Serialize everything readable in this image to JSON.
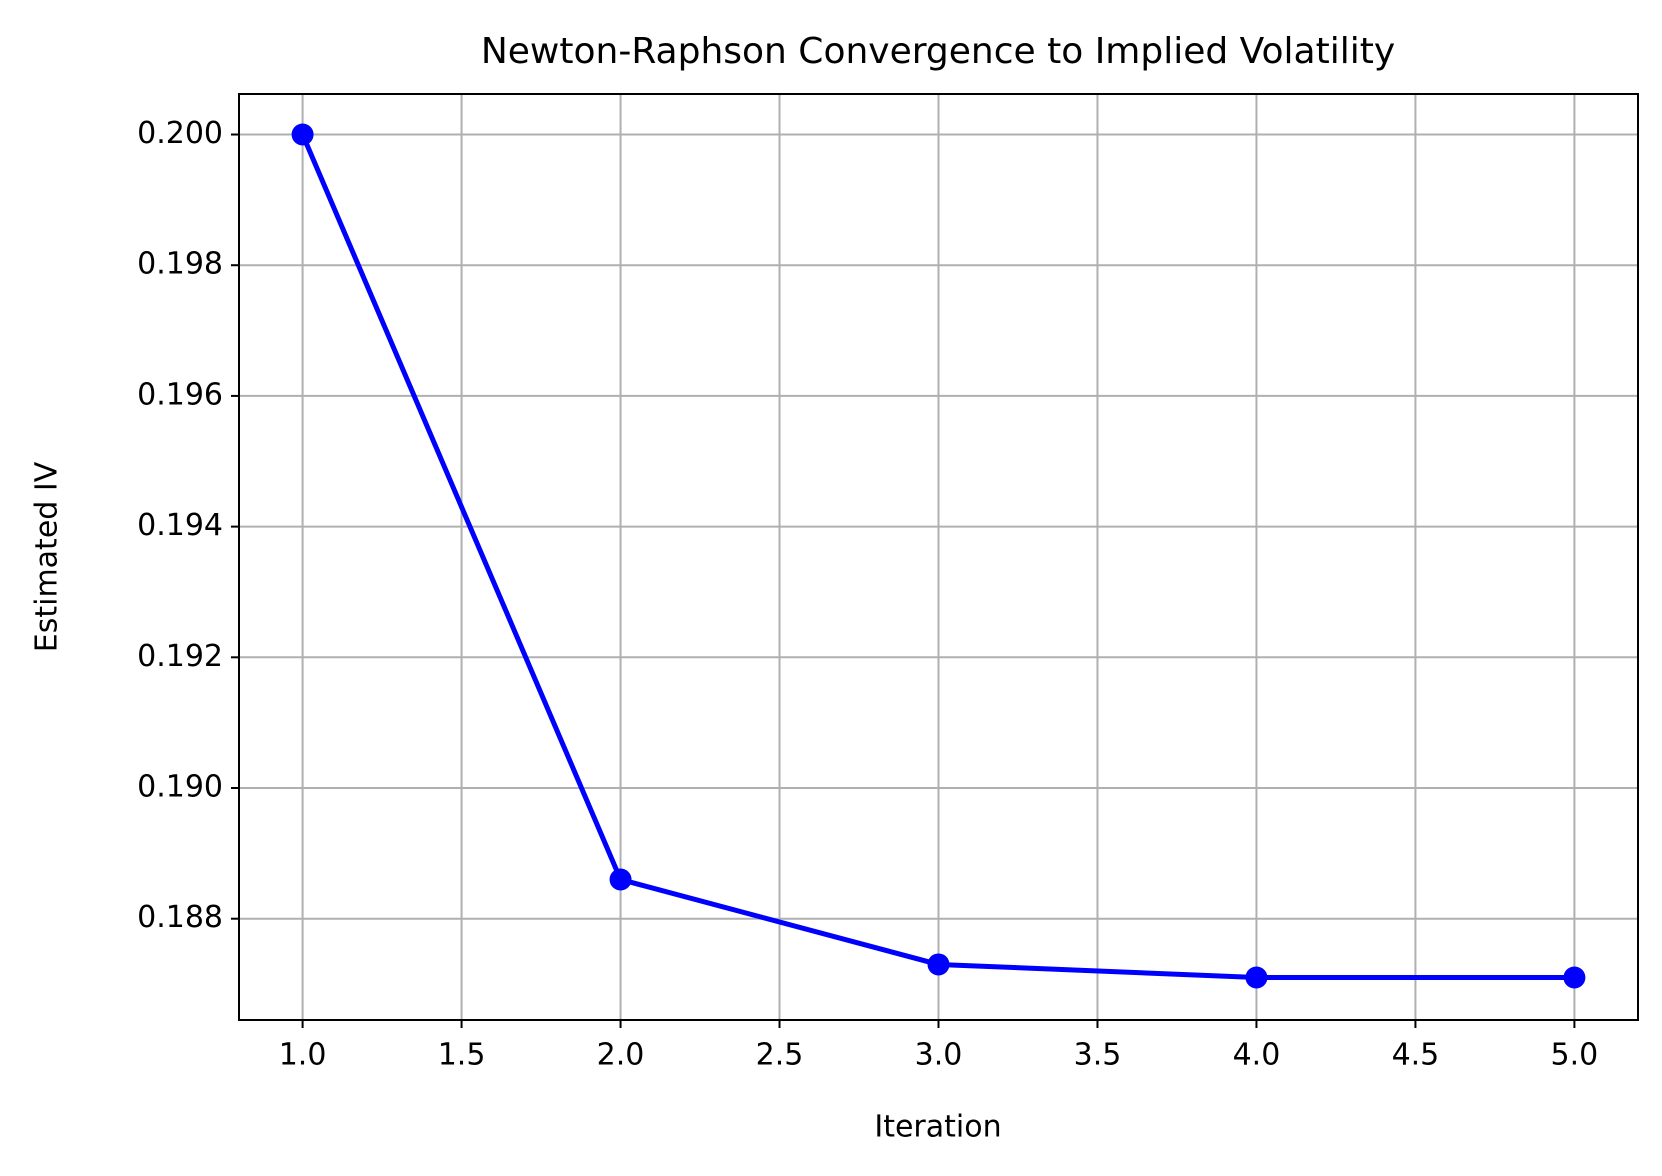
{
  "chart_data": {
    "type": "line",
    "title": "Newton-Raphson Convergence to Implied Volatility",
    "x_label": "Iteration",
    "y_label": "Estimated IV",
    "x": [
      1,
      2,
      3,
      4,
      5
    ],
    "series": [
      {
        "name": "Estimated IV",
        "color": "#0000ff",
        "values": [
          0.2,
          0.1886,
          0.1873,
          0.1871,
          0.1871
        ]
      }
    ],
    "xlim": [
      0.8,
      5.2
    ],
    "xticks": [
      {
        "value": 1,
        "label": "1.0"
      },
      {
        "value": 1.5,
        "label": "1.5"
      },
      {
        "value": 2,
        "label": "2.0"
      },
      {
        "value": 2.5,
        "label": "2.5"
      },
      {
        "value": 3,
        "label": "3.0"
      },
      {
        "value": 3.5,
        "label": "3.5"
      },
      {
        "value": 4,
        "label": "4.0"
      },
      {
        "value": 4.5,
        "label": "4.5"
      },
      {
        "value": 5,
        "label": "5.0"
      }
    ],
    "ylim": [
      0.18645,
      0.20062
    ],
    "yticks": [
      0.188,
      {
        "value": 0.19,
        "label": "0.190"
      },
      0.192,
      0.194,
      0.196,
      0.198,
      {
        "value": 0.2,
        "label": "0.200"
      }
    ],
    "grid": true
  }
}
